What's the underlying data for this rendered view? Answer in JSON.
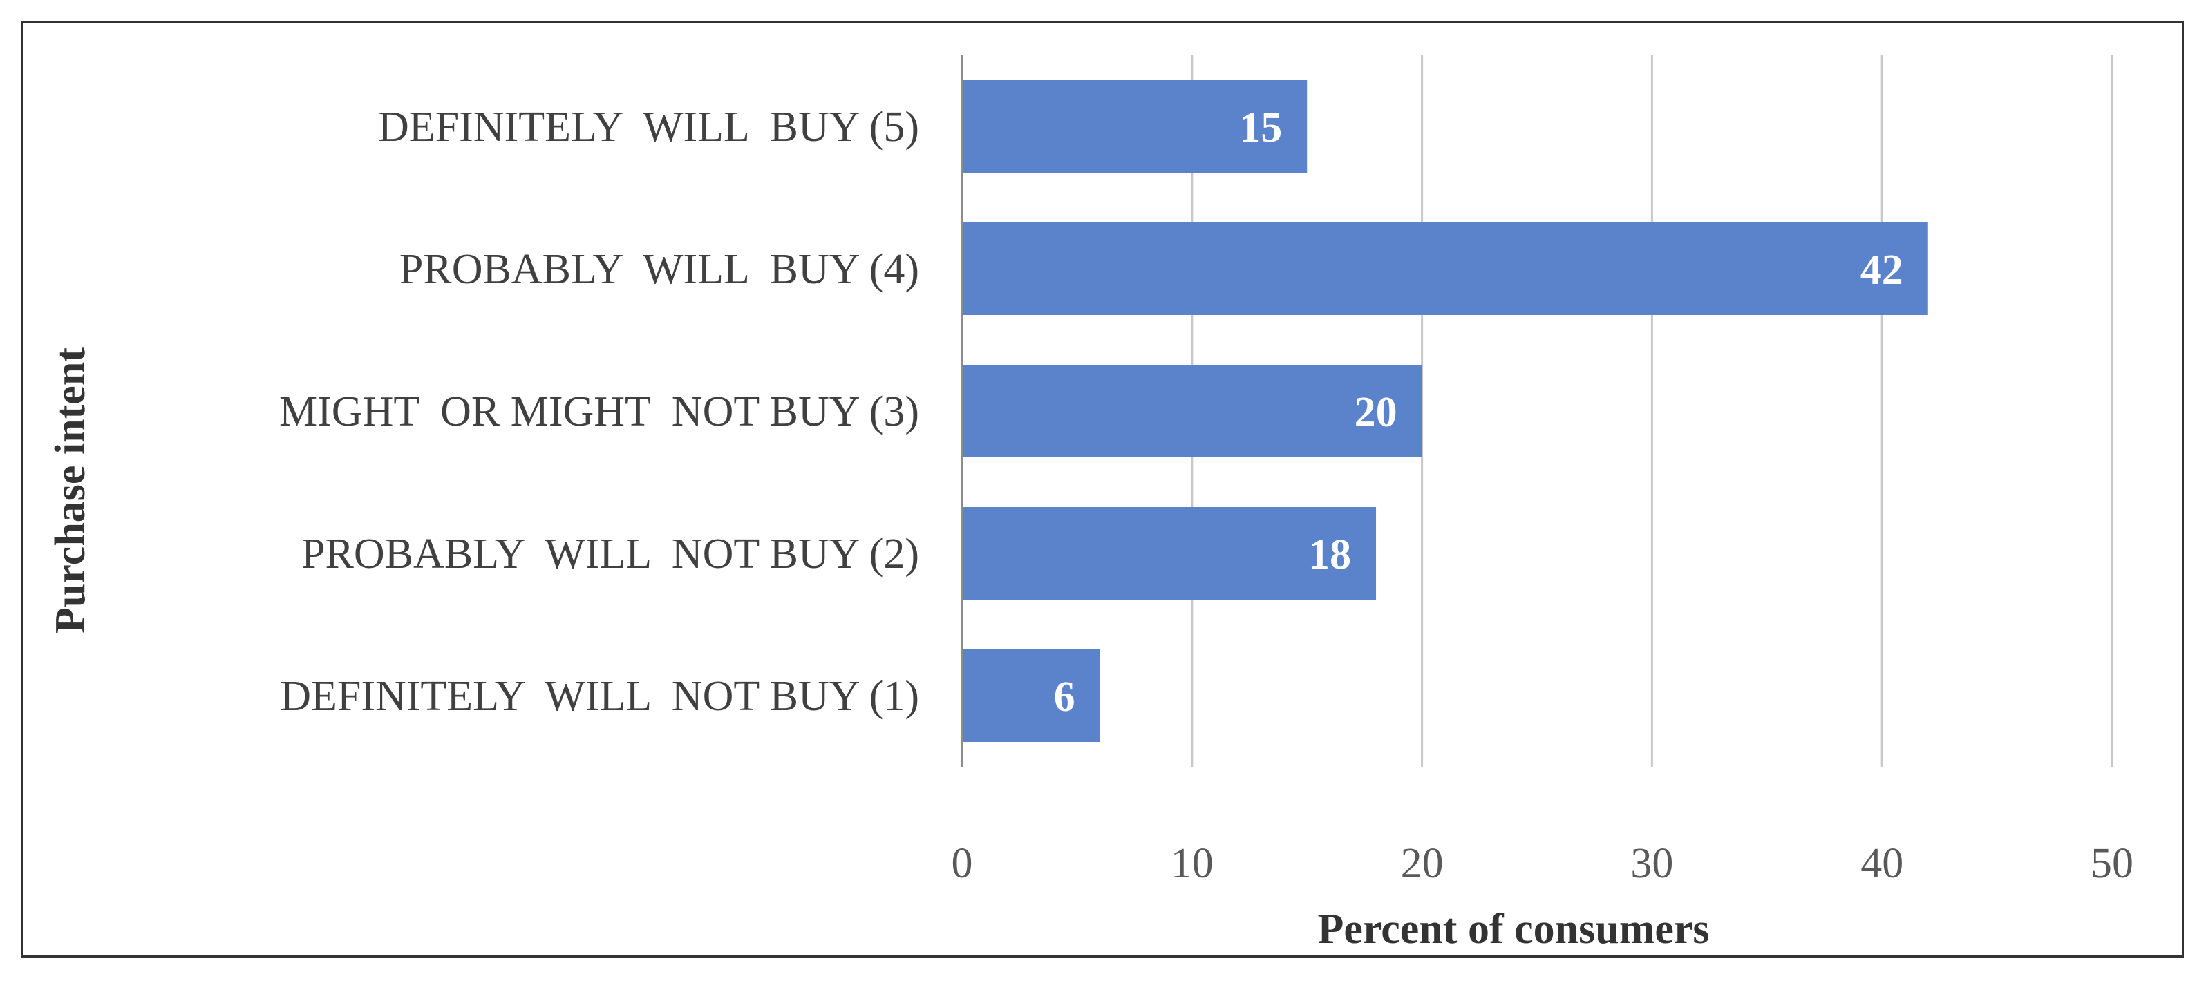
{
  "chart_data": {
    "type": "bar",
    "orientation": "horizontal",
    "categories": [
      "DEFINITELY  WILL  BUY (5)",
      "PROBABLY  WILL  BUY (4)",
      "MIGHT  OR MIGHT  NOT BUY (3)",
      "PROBABLY  WILL  NOT BUY (2)",
      "DEFINITELY  WILL  NOT BUY (1)"
    ],
    "values": [
      15,
      42,
      20,
      18,
      6
    ],
    "data_labels": [
      "15",
      "42",
      "20",
      "18",
      "6"
    ],
    "xlabel": "Percent of consumers",
    "ylabel": "Purchase intent",
    "xlim": [
      0,
      50
    ],
    "xticks": [
      0,
      10,
      20,
      30,
      40,
      50
    ],
    "xtick_labels": [
      "0",
      "10",
      "20",
      "30",
      "40",
      "50"
    ],
    "grid": "vertical",
    "legend": "none",
    "bar_color": "#5b83cb",
    "grid_color": "#c8c8c8",
    "axis_color": "#8c8c8c"
  }
}
